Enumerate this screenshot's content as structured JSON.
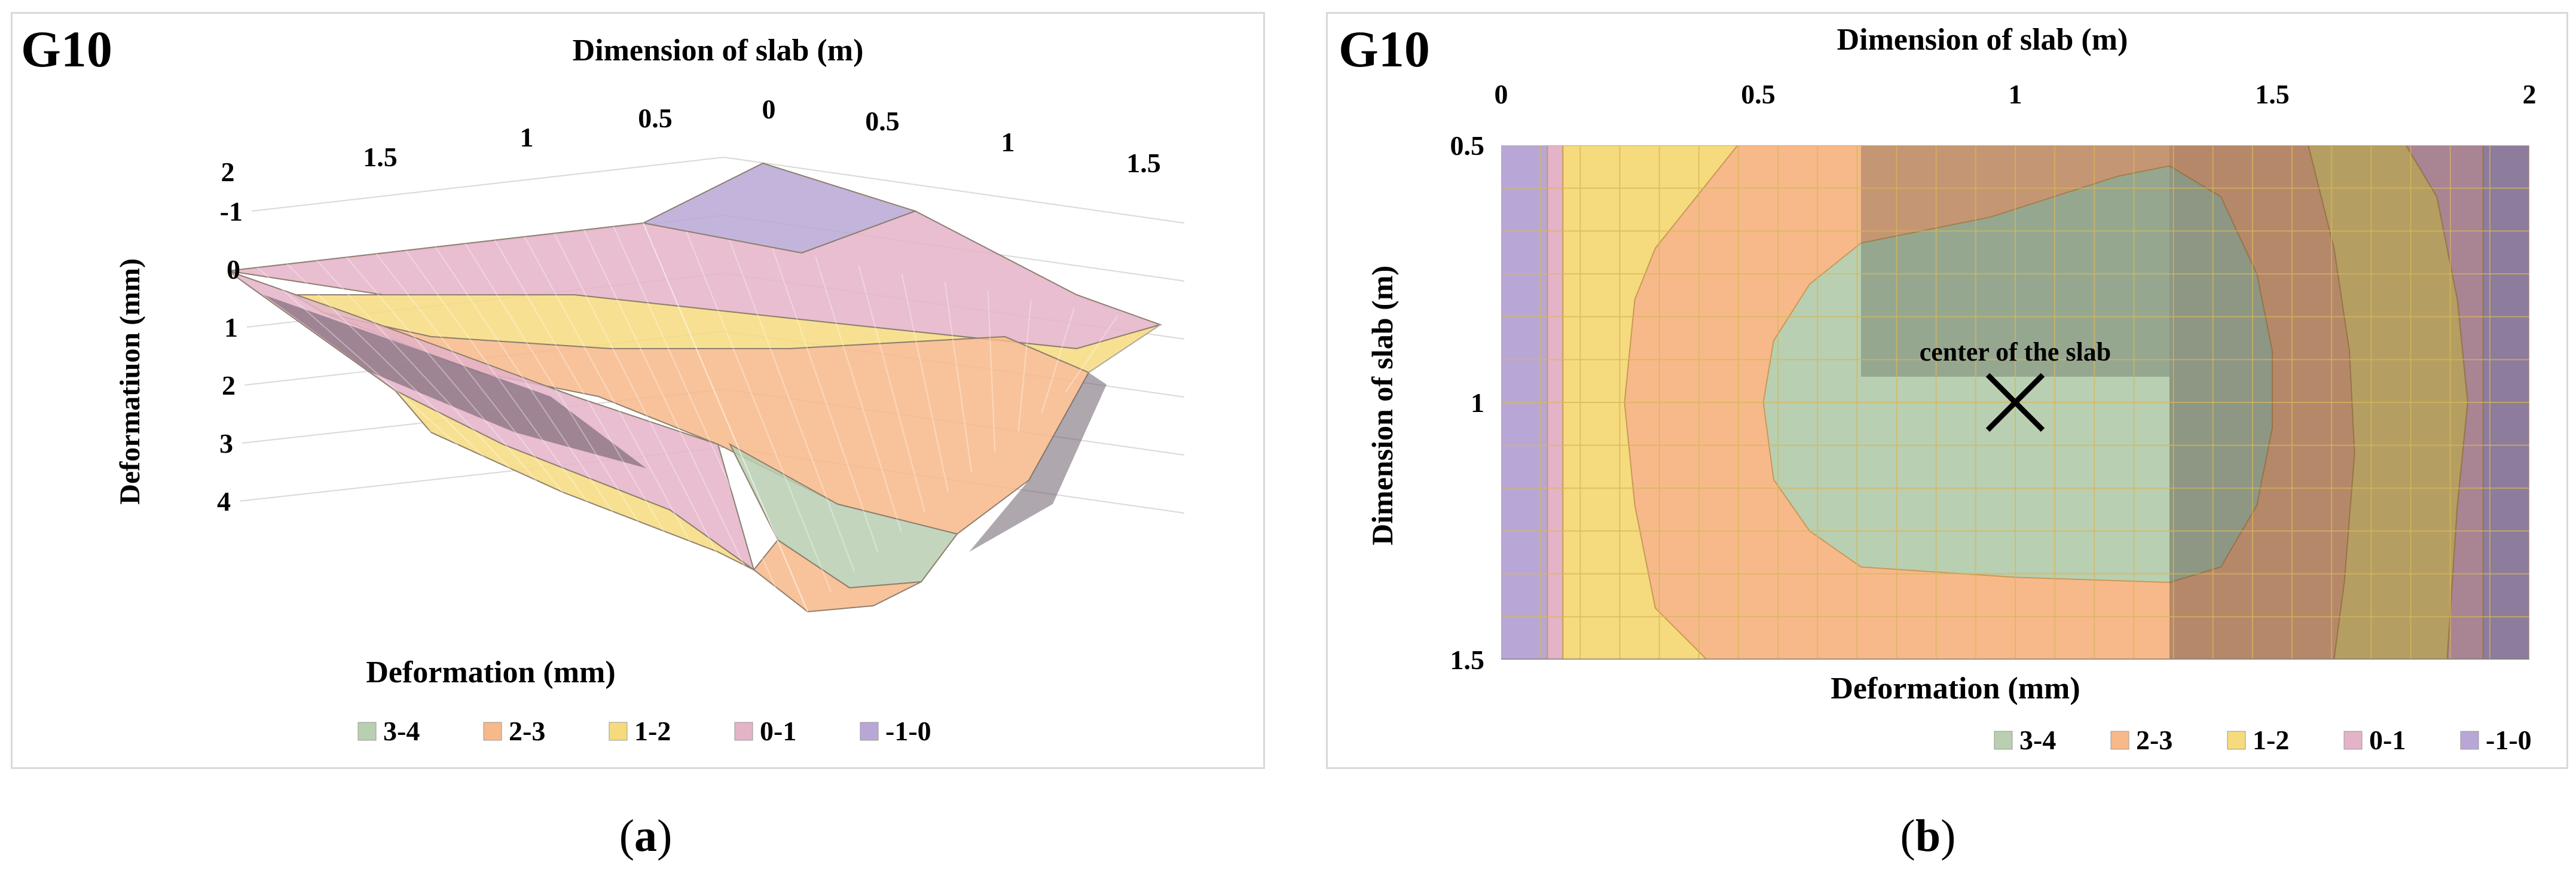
{
  "colors": {
    "band_3_4": "#b9cfb1",
    "band_2_3": "#f7b98a",
    "band_1_2": "#f6da7e",
    "band_0_1": "#e4b3c8",
    "band_m1_0": "#b8a7d6"
  },
  "panel_a": {
    "tag": "G10",
    "sublabel_open": "(",
    "sublabel_letter": "a",
    "sublabel_close": ")"
  },
  "panel_b": {
    "tag": "G10",
    "annotation": "center of the slab",
    "sublabel_open": "(",
    "sublabel_letter": "b",
    "sublabel_close": ")"
  },
  "chart_data": [
    {
      "type": "surface",
      "title": "G10",
      "xlabel": "Dimension of slab (m)",
      "zlabel": "Deformatiuon (mm)",
      "x_ticks_left": [
        "2",
        "1.5",
        "1",
        "0.5",
        "0"
      ],
      "x_ticks_right": [
        "0.5",
        "1",
        "1.5"
      ],
      "z_ticks": [
        "-1",
        "0",
        "1",
        "2",
        "3",
        "4"
      ],
      "legend_title": "Deformation (mm)",
      "legend_position": "bottom",
      "legend": [
        "3-4",
        "2-3",
        "1-2",
        "0-1",
        "-1-0"
      ],
      "grid": true,
      "max_deformation_mm": 4,
      "min_deformation_mm": -1
    },
    {
      "type": "contour",
      "title": "G10",
      "xlabel": "Dimension of slab (m)",
      "ylabel": "Dimension of slab (m)",
      "x_ticks": [
        "0",
        "0.5",
        "1",
        "1.5",
        "2"
      ],
      "y_ticks": [
        "0.5",
        "1",
        "1.5"
      ],
      "xlim": [
        0,
        2
      ],
      "ylim": [
        0.5,
        1.5
      ],
      "legend_title": "Deformation (mm)",
      "legend_position": "bottom",
      "legend": [
        "3-4",
        "2-3",
        "1-2",
        "0-1",
        "-1-0"
      ],
      "grid": true,
      "center_marker": {
        "x": 1.0,
        "y": 1.0
      },
      "contours": [
        {
          "band": "0-1",
          "points": [
            [
              0.09,
              0.5
            ],
            [
              1.91,
              0.5
            ],
            [
              1.91,
              1.5
            ],
            [
              0.09,
              1.5
            ]
          ]
        },
        {
          "band": "1-2",
          "points": [
            [
              0.12,
              0.5
            ],
            [
              1.76,
              0.5
            ],
            [
              1.82,
              0.6
            ],
            [
              1.86,
              0.8
            ],
            [
              1.88,
              1.0
            ],
            [
              1.86,
              1.2
            ],
            [
              1.84,
              1.5
            ],
            [
              0.12,
              1.5
            ],
            [
              0.12,
              0.9
            ]
          ]
        },
        {
          "band": "2-3",
          "points": [
            [
              0.46,
              0.5
            ],
            [
              1.57,
              0.5
            ],
            [
              1.62,
              0.7
            ],
            [
              1.65,
              0.9
            ],
            [
              1.66,
              1.1
            ],
            [
              1.64,
              1.35
            ],
            [
              1.62,
              1.5
            ],
            [
              0.4,
              1.5
            ],
            [
              0.3,
              1.4
            ],
            [
              0.26,
              1.2
            ],
            [
              0.24,
              1.0
            ],
            [
              0.26,
              0.8
            ],
            [
              0.3,
              0.7
            ]
          ]
        },
        {
          "band": "3-4",
          "points": [
            [
              0.7,
              0.69
            ],
            [
              0.95,
              0.64
            ],
            [
              1.2,
              0.56
            ],
            [
              1.3,
              0.54
            ],
            [
              1.4,
              0.6
            ],
            [
              1.47,
              0.75
            ],
            [
              1.5,
              0.9
            ],
            [
              1.5,
              1.05
            ],
            [
              1.47,
              1.2
            ],
            [
              1.4,
              1.32
            ],
            [
              1.3,
              1.35
            ],
            [
              1.0,
              1.34
            ],
            [
              0.7,
              1.32
            ],
            [
              0.6,
              1.25
            ],
            [
              0.53,
              1.15
            ],
            [
              0.51,
              1.0
            ],
            [
              0.53,
              0.88
            ],
            [
              0.6,
              0.77
            ]
          ]
        }
      ]
    }
  ]
}
